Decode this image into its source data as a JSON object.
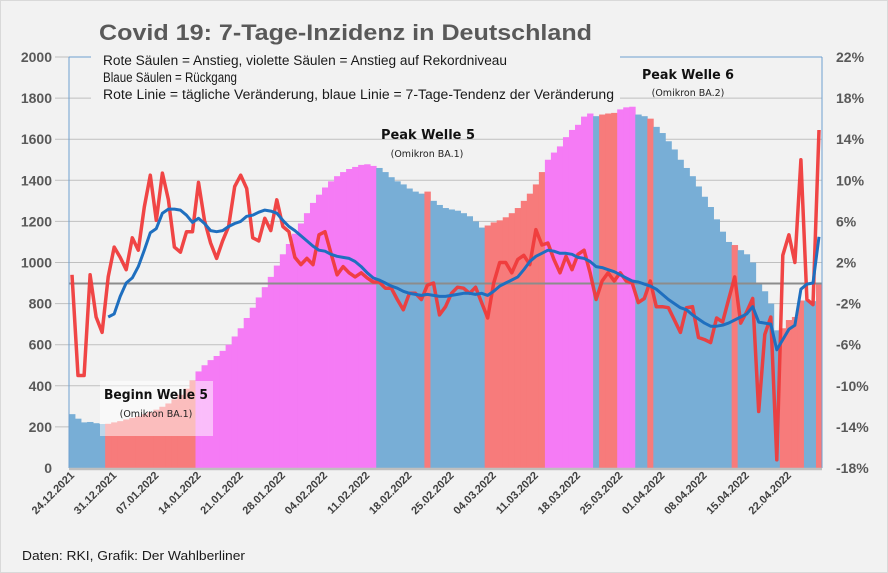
{
  "chart_data": {
    "type": "bar",
    "title": "Covid 19: 7-Tage-Inzidenz in Deutschland",
    "legend_lines": [
      "Rote Säulen = Anstieg, violette Säulen = Anstieg auf Rekordniveau",
      "Blaue Säulen = Rückgang",
      "Rote Linie = tägliche Veränderung, blaue Linie = 7-Tage-Tendenz der Veränderung"
    ],
    "legend_placement": "top",
    "source": "Daten: RKI, Grafik: Der Wahlberliner",
    "colors": {
      "decline": "#78aed6",
      "rise": "#f77b7b",
      "record": "#f57bf5",
      "daily_line": "#ef3b3b",
      "trend_line": "#1f6fbf",
      "zero_line": "#8c8c8c",
      "grid": "#bfbfbf",
      "frame": "#6fa0d0"
    },
    "grid": true,
    "ylim_left": [
      0,
      2000
    ],
    "left_ticks": [
      "0",
      "200",
      "400",
      "600",
      "800",
      "1000",
      "1200",
      "1400",
      "1600",
      "1800",
      "2000"
    ],
    "ylim_right": [
      -18,
      22
    ],
    "right_ticks": [
      "-18%",
      "-14%",
      "-10%",
      "-6%",
      "-2%",
      "2%",
      "6%",
      "10%",
      "14%",
      "18%",
      "22%"
    ],
    "x_start": "24.12.2021",
    "x_end": "27.04.2022",
    "x_tick_labels": [
      "24.12.2021",
      "31.12.2021",
      "07.01.2022",
      "14.01.2022",
      "21.01.2022",
      "28.01.2022",
      "04.02.2022",
      "11.02.2022",
      "18.02.2022",
      "25.02.2022",
      "04.03.2022",
      "11.03.2022",
      "18.03.2022",
      "25.03.2022",
      "01.04.2022",
      "08.04.2022",
      "15.04.2022",
      "22.04.2022"
    ],
    "incidence": [
      262,
      240,
      222,
      224,
      218,
      214,
      215,
      222,
      228,
      236,
      244,
      252,
      262,
      272,
      284,
      298,
      314,
      334,
      356,
      386,
      425,
      470,
      500,
      525,
      545,
      570,
      600,
      640,
      680,
      730,
      780,
      830,
      880,
      930,
      985,
      1040,
      1090,
      1140,
      1190,
      1240,
      1290,
      1330,
      1365,
      1395,
      1420,
      1440,
      1455,
      1465,
      1475,
      1478,
      1470,
      1460,
      1440,
      1415,
      1395,
      1380,
      1360,
      1345,
      1335,
      1345,
      1300,
      1280,
      1265,
      1258,
      1252,
      1240,
      1225,
      1200,
      1170,
      1180,
      1195,
      1205,
      1220,
      1240,
      1265,
      1300,
      1335,
      1380,
      1440,
      1500,
      1535,
      1565,
      1610,
      1645,
      1670,
      1710,
      1725,
      1712,
      1720,
      1725,
      1728,
      1745,
      1755,
      1758,
      1720,
      1712,
      1700,
      1660,
      1630,
      1590,
      1550,
      1500,
      1460,
      1420,
      1370,
      1320,
      1270,
      1210,
      1150,
      1100,
      1085,
      1060,
      1040,
      1000,
      900,
      860,
      800,
      670,
      680,
      720,
      735,
      815,
      815,
      812,
      900
    ],
    "bar_category": [
      "decline",
      "decline",
      "decline",
      "decline",
      "decline",
      "decline",
      "rise",
      "rise",
      "rise",
      "rise",
      "rise",
      "rise",
      "rise",
      "rise",
      "rise",
      "rise",
      "rise",
      "rise",
      "rise",
      "rise",
      "rise",
      "record",
      "record",
      "record",
      "record",
      "record",
      "record",
      "record",
      "record",
      "record",
      "record",
      "record",
      "record",
      "record",
      "record",
      "record",
      "record",
      "record",
      "record",
      "record",
      "record",
      "record",
      "record",
      "record",
      "record",
      "record",
      "record",
      "record",
      "record",
      "record",
      "record",
      "decline",
      "decline",
      "decline",
      "decline",
      "decline",
      "decline",
      "decline",
      "decline",
      "rise",
      "decline",
      "decline",
      "decline",
      "decline",
      "decline",
      "decline",
      "decline",
      "decline",
      "decline",
      "rise",
      "rise",
      "rise",
      "rise",
      "rise",
      "rise",
      "rise",
      "rise",
      "rise",
      "rise",
      "record",
      "record",
      "record",
      "record",
      "record",
      "record",
      "record",
      "record",
      "decline",
      "rise",
      "rise",
      "rise",
      "record",
      "record",
      "record",
      "decline",
      "decline",
      "rise",
      "decline",
      "decline",
      "decline",
      "decline",
      "decline",
      "decline",
      "decline",
      "decline",
      "decline",
      "decline",
      "decline",
      "decline",
      "decline",
      "rise",
      "decline",
      "decline",
      "decline",
      "decline",
      "decline",
      "decline",
      "decline",
      "rise",
      "rise",
      "rise",
      "rise",
      "decline",
      "decline",
      "rise"
    ],
    "daily_change_pct": [
      0.8,
      -9,
      -9,
      0.8,
      -3.3,
      -4.8,
      0.6,
      3.5,
      2.5,
      1.3,
      4.4,
      3.2,
      7.4,
      10.5,
      6.1,
      10.7,
      8.1,
      3.5,
      3,
      5,
      5,
      9.8,
      6.1,
      3.9,
      2.4,
      4.1,
      5.5,
      9.4,
      10.5,
      9.2,
      4.4,
      4.1,
      6.3,
      5.1,
      8.1,
      5.5,
      5,
      2.5,
      1.8,
      2.4,
      1.8,
      4.7,
      5,
      2.9,
      0.8,
      1.6,
      1,
      0.6,
      1,
      0.5,
      0.1,
      0.1,
      -0.5,
      -0.5,
      -1.6,
      -2.6,
      -1,
      -1,
      -1.6,
      -0.2,
      0,
      -3.1,
      -2.3,
      -1,
      -0.4,
      -0.5,
      -1,
      -0.4,
      -1.9,
      -3.4,
      0,
      2,
      2,
      1,
      2.3,
      2.7,
      1.8,
      5.2,
      3.7,
      3.9,
      2.3,
      1,
      2.6,
      1.3,
      2.8,
      3.2,
      1,
      -1.6,
      0.2,
      1,
      0.2,
      1,
      0.2,
      0,
      -1.9,
      -1.5,
      0.2,
      -2.3,
      -2.3,
      -2.4,
      -3.6,
      -4.8,
      -2.4,
      -2.3,
      -5.3,
      -5.5,
      -5.8,
      -3.4,
      -3.8,
      -1.6,
      0.6,
      -3.9,
      -2.8,
      -1.5,
      -12.5,
      -5,
      -3.3,
      -17.2,
      2.7,
      4.7,
      2,
      12,
      -1.6,
      -2.1,
      14.9
    ],
    "trend_7day_pct": [
      null,
      null,
      null,
      null,
      null,
      null,
      -3.3,
      -3,
      -1.3,
      0,
      0.5,
      1.6,
      3.2,
      4.9,
      5.3,
      6.8,
      7.2,
      7.2,
      7.1,
      6.6,
      5.9,
      6.3,
      5.8,
      5.1,
      5,
      5.1,
      5.5,
      5.8,
      6,
      6.5,
      6.6,
      6.9,
      7.1,
      7,
      6.8,
      6.1,
      5.5,
      5.1,
      4.6,
      4.1,
      3.6,
      3.2,
      3.1,
      2.8,
      2.6,
      2.5,
      2.4,
      2.1,
      1.6,
      1,
      0.5,
      0.3,
      0,
      -0.3,
      -0.5,
      -0.8,
      -1,
      -1.1,
      -1.2,
      -1.1,
      -1.2,
      -1.3,
      -1.3,
      -1.2,
      -1.1,
      -1,
      -1,
      -1.1,
      -1,
      -1.2,
      -0.8,
      -0.3,
      0,
      0.3,
      0.6,
      1.3,
      2.1,
      2.6,
      2.9,
      3.2,
      3.1,
      2.9,
      2.9,
      2.8,
      2.5,
      2.4,
      2.1,
      1.6,
      1.5,
      1.3,
      1.1,
      0.8,
      0.5,
      0.2,
      0.1,
      -0.1,
      -0.3,
      -0.6,
      -1.1,
      -1.6,
      -2,
      -2.4,
      -2.6,
      -3.1,
      -3.5,
      -3.9,
      -4.2,
      -4.2,
      -4.1,
      -3.9,
      -3.6,
      -3.3,
      -3,
      -2.3,
      -3.8,
      -3.9,
      -4,
      -6.5,
      -5.5,
      -4.5,
      -4.1,
      -0.6,
      -0.1,
      0,
      4.5
    ],
    "annotations": [
      {
        "title": "Beginn Welle 5",
        "subtitle": "(Omikron BA.1)",
        "date": "31.12.2021"
      },
      {
        "title": "Peak Welle 5",
        "subtitle": "(Omikron BA.1)",
        "date": "11.02.2022"
      },
      {
        "title": "Peak Welle 6",
        "subtitle": "(Omikron BA.2)",
        "date": "25.03.2022"
      }
    ]
  }
}
